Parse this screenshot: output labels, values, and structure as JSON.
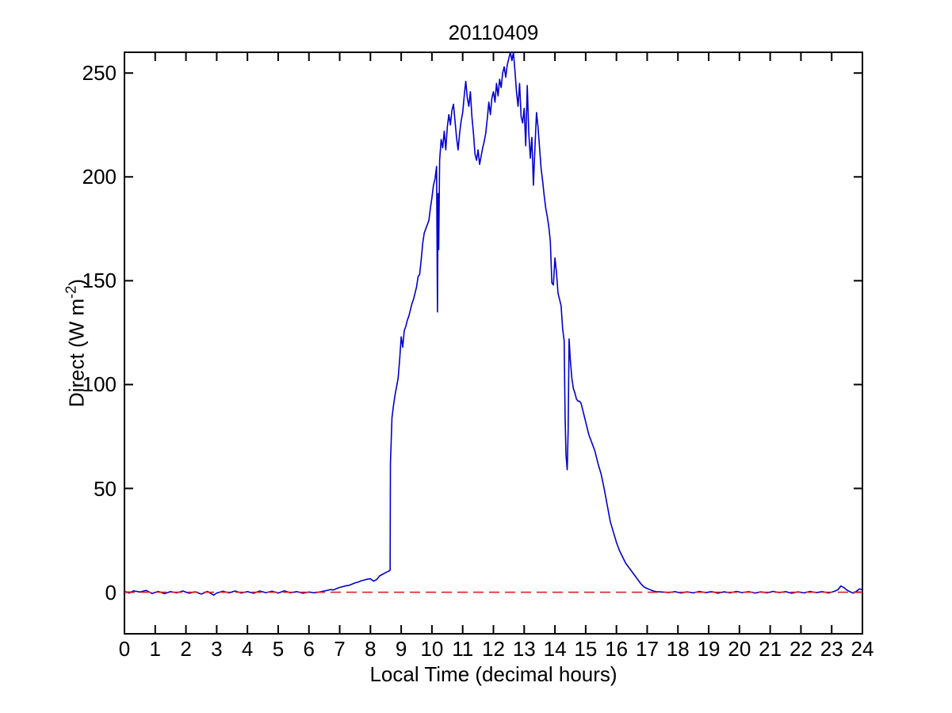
{
  "title": "20110409",
  "chart_data": {
    "type": "line",
    "title": "20110409",
    "xlabel": "Local Time (decimal hours)",
    "ylabel": "Direct (W m^-2)",
    "ylabel_parts": {
      "pre": "Direct (W m",
      "sup": "-2",
      "post": ")"
    },
    "xlim": [
      0,
      24
    ],
    "ylim": [
      -20,
      260
    ],
    "xticks": [
      0,
      1,
      2,
      3,
      4,
      5,
      6,
      7,
      8,
      9,
      10,
      11,
      12,
      13,
      14,
      15,
      16,
      17,
      18,
      19,
      20,
      21,
      22,
      23,
      24
    ],
    "yticks": [
      0,
      50,
      100,
      150,
      200,
      250
    ],
    "grid": false,
    "legend": null,
    "axis_color": "#000000",
    "background": "#ffffff",
    "series": [
      {
        "name": "direct-irradiance",
        "color": "#0000cc",
        "style": "solid",
        "points": [
          [
            0,
            0.5
          ],
          [
            0.15,
            -0.4
          ],
          [
            0.3,
            0.7
          ],
          [
            0.5,
            0.1
          ],
          [
            0.7,
            0.9
          ],
          [
            0.9,
            -0.6
          ],
          [
            1.1,
            0.4
          ],
          [
            1.3,
            -0.7
          ],
          [
            1.5,
            0.3
          ],
          [
            1.7,
            -0.3
          ],
          [
            1.9,
            0.6
          ],
          [
            2.1,
            -0.5
          ],
          [
            2.3,
            0.2
          ],
          [
            2.5,
            -0.9
          ],
          [
            2.7,
            0.4
          ],
          [
            2.9,
            -1.4
          ],
          [
            3.0,
            -0.4
          ],
          [
            3.2,
            0.5
          ],
          [
            3.4,
            -0.3
          ],
          [
            3.6,
            0.6
          ],
          [
            3.8,
            -0.4
          ],
          [
            4.0,
            0.3
          ],
          [
            4.2,
            -0.5
          ],
          [
            4.4,
            0.6
          ],
          [
            4.6,
            -0.2
          ],
          [
            4.8,
            0.5
          ],
          [
            5.0,
            -0.4
          ],
          [
            5.2,
            0.7
          ],
          [
            5.4,
            -0.3
          ],
          [
            5.6,
            0.3
          ],
          [
            5.8,
            -0.5
          ],
          [
            6.0,
            0.1
          ],
          [
            6.2,
            -0.3
          ],
          [
            6.4,
            0.3
          ],
          [
            6.5,
            0.6
          ],
          [
            6.6,
            0.9
          ],
          [
            6.7,
            1.3
          ],
          [
            6.8,
            1.1
          ],
          [
            6.9,
            1.8
          ],
          [
            7.0,
            2.3
          ],
          [
            7.1,
            2.7
          ],
          [
            7.2,
            3.1
          ],
          [
            7.3,
            3.3
          ],
          [
            7.4,
            3.9
          ],
          [
            7.5,
            4.5
          ],
          [
            7.6,
            4.9
          ],
          [
            7.7,
            5.5
          ],
          [
            7.8,
            5.9
          ],
          [
            7.9,
            6.3
          ],
          [
            8.0,
            6.5
          ],
          [
            8.1,
            5.3
          ],
          [
            8.2,
            6.1
          ],
          [
            8.3,
            7.9
          ],
          [
            8.4,
            8.7
          ],
          [
            8.5,
            9.5
          ],
          [
            8.6,
            10.2
          ],
          [
            8.64,
            10.6
          ],
          [
            8.65,
            62
          ],
          [
            8.68,
            75
          ],
          [
            8.7,
            84
          ],
          [
            8.75,
            90
          ],
          [
            8.8,
            95
          ],
          [
            8.85,
            99
          ],
          [
            8.9,
            103
          ],
          [
            8.95,
            112
          ],
          [
            9.0,
            123
          ],
          [
            9.05,
            118
          ],
          [
            9.1,
            126
          ],
          [
            9.15,
            128
          ],
          [
            9.2,
            131
          ],
          [
            9.25,
            133
          ],
          [
            9.3,
            136
          ],
          [
            9.35,
            139
          ],
          [
            9.4,
            141
          ],
          [
            9.45,
            144
          ],
          [
            9.5,
            147
          ],
          [
            9.55,
            152
          ],
          [
            9.6,
            153
          ],
          [
            9.65,
            160
          ],
          [
            9.7,
            168
          ],
          [
            9.75,
            173
          ],
          [
            9.8,
            175
          ],
          [
            9.85,
            177
          ],
          [
            9.9,
            179
          ],
          [
            9.95,
            185
          ],
          [
            10.0,
            190
          ],
          [
            10.05,
            196
          ],
          [
            10.1,
            199
          ],
          [
            10.15,
            205
          ],
          [
            10.18,
            135
          ],
          [
            10.2,
            192
          ],
          [
            10.22,
            165
          ],
          [
            10.25,
            208
          ],
          [
            10.3,
            218
          ],
          [
            10.35,
            214
          ],
          [
            10.4,
            222
          ],
          [
            10.45,
            213
          ],
          [
            10.5,
            224
          ],
          [
            10.55,
            230
          ],
          [
            10.6,
            225
          ],
          [
            10.65,
            232
          ],
          [
            10.7,
            235
          ],
          [
            10.75,
            227
          ],
          [
            10.8,
            219
          ],
          [
            10.85,
            213
          ],
          [
            10.9,
            221
          ],
          [
            10.95,
            227
          ],
          [
            11.0,
            231
          ],
          [
            11.05,
            239
          ],
          [
            11.1,
            246
          ],
          [
            11.15,
            238
          ],
          [
            11.2,
            234
          ],
          [
            11.25,
            241
          ],
          [
            11.3,
            229
          ],
          [
            11.35,
            221
          ],
          [
            11.4,
            211
          ],
          [
            11.45,
            208
          ],
          [
            11.5,
            213
          ],
          [
            11.55,
            206
          ],
          [
            11.6,
            210
          ],
          [
            11.65,
            214
          ],
          [
            11.7,
            217
          ],
          [
            11.75,
            221
          ],
          [
            11.8,
            228
          ],
          [
            11.85,
            236
          ],
          [
            11.9,
            230
          ],
          [
            11.95,
            238
          ],
          [
            12.0,
            241
          ],
          [
            12.05,
            236
          ],
          [
            12.1,
            245
          ],
          [
            12.15,
            239
          ],
          [
            12.2,
            247
          ],
          [
            12.25,
            243
          ],
          [
            12.3,
            250
          ],
          [
            12.35,
            253
          ],
          [
            12.4,
            248
          ],
          [
            12.45,
            254
          ],
          [
            12.5,
            257
          ],
          [
            12.55,
            260
          ],
          [
            12.6,
            256
          ],
          [
            12.65,
            260
          ],
          [
            12.7,
            251
          ],
          [
            12.75,
            241
          ],
          [
            12.8,
            234
          ],
          [
            12.85,
            245
          ],
          [
            12.9,
            229
          ],
          [
            12.95,
            226
          ],
          [
            13.0,
            233
          ],
          [
            13.05,
            215
          ],
          [
            13.1,
            244
          ],
          [
            13.15,
            221
          ],
          [
            13.2,
            209
          ],
          [
            13.25,
            219
          ],
          [
            13.3,
            196
          ],
          [
            13.35,
            214
          ],
          [
            13.4,
            231
          ],
          [
            13.45,
            224
          ],
          [
            13.5,
            214
          ],
          [
            13.55,
            204
          ],
          [
            13.6,
            198
          ],
          [
            13.65,
            191
          ],
          [
            13.7,
            185
          ],
          [
            13.75,
            181
          ],
          [
            13.8,
            176
          ],
          [
            13.85,
            169
          ],
          [
            13.9,
            149
          ],
          [
            13.95,
            148
          ],
          [
            14.0,
            161
          ],
          [
            14.05,
            154
          ],
          [
            14.1,
            144
          ],
          [
            14.15,
            141
          ],
          [
            14.2,
            138
          ],
          [
            14.25,
            127
          ],
          [
            14.3,
            121
          ],
          [
            14.33,
            85
          ],
          [
            14.36,
            66
          ],
          [
            14.4,
            59
          ],
          [
            14.43,
            78
          ],
          [
            14.46,
            122
          ],
          [
            14.5,
            112
          ],
          [
            14.55,
            103
          ],
          [
            14.6,
            98
          ],
          [
            14.65,
            96
          ],
          [
            14.7,
            93
          ],
          [
            14.75,
            92
          ],
          [
            14.8,
            92
          ],
          [
            14.85,
            91
          ],
          [
            14.9,
            88
          ],
          [
            14.95,
            85
          ],
          [
            15.0,
            82
          ],
          [
            15.1,
            76
          ],
          [
            15.2,
            72
          ],
          [
            15.3,
            68
          ],
          [
            15.4,
            62
          ],
          [
            15.5,
            57
          ],
          [
            15.6,
            50
          ],
          [
            15.7,
            42
          ],
          [
            15.8,
            34
          ],
          [
            15.9,
            29
          ],
          [
            16.0,
            24
          ],
          [
            16.1,
            20
          ],
          [
            16.2,
            17
          ],
          [
            16.3,
            14
          ],
          [
            16.4,
            12
          ],
          [
            16.5,
            10
          ],
          [
            16.6,
            8
          ],
          [
            16.7,
            6
          ],
          [
            16.8,
            4
          ],
          [
            16.9,
            2.5
          ],
          [
            17.0,
            1.8
          ],
          [
            17.1,
            1.2
          ],
          [
            17.2,
            0.6
          ],
          [
            17.3,
            0.3
          ],
          [
            17.5,
            0.1
          ],
          [
            17.7,
            -0.2
          ],
          [
            17.9,
            0.3
          ],
          [
            18.1,
            -0.4
          ],
          [
            18.3,
            0.2
          ],
          [
            18.5,
            -0.3
          ],
          [
            18.7,
            0.4
          ],
          [
            18.9,
            -0.2
          ],
          [
            19.1,
            0.3
          ],
          [
            19.3,
            -0.5
          ],
          [
            19.5,
            0.2
          ],
          [
            19.7,
            -0.3
          ],
          [
            19.9,
            0.4
          ],
          [
            20.1,
            -0.2
          ],
          [
            20.3,
            0.3
          ],
          [
            20.5,
            -0.4
          ],
          [
            20.7,
            0.2
          ],
          [
            20.9,
            -0.3
          ],
          [
            21.1,
            0.4
          ],
          [
            21.3,
            -0.2
          ],
          [
            21.5,
            0.3
          ],
          [
            21.7,
            -0.5
          ],
          [
            21.9,
            0.2
          ],
          [
            22.1,
            -0.3
          ],
          [
            22.3,
            0.4
          ],
          [
            22.5,
            -0.2
          ],
          [
            22.7,
            0.3
          ],
          [
            22.9,
            -0.4
          ],
          [
            23.1,
            0.5
          ],
          [
            23.2,
            1.2
          ],
          [
            23.3,
            3.0
          ],
          [
            23.4,
            2.2
          ],
          [
            23.5,
            1.0
          ],
          [
            23.6,
            0.2
          ],
          [
            23.7,
            -0.4
          ],
          [
            23.8,
            0.4
          ],
          [
            23.9,
            1.6
          ],
          [
            24.0,
            1.2
          ]
        ]
      },
      {
        "name": "zero-reference-line",
        "color": "#dd2020",
        "style": "dashed",
        "points": [
          [
            0,
            0
          ],
          [
            24,
            0
          ]
        ]
      }
    ]
  }
}
